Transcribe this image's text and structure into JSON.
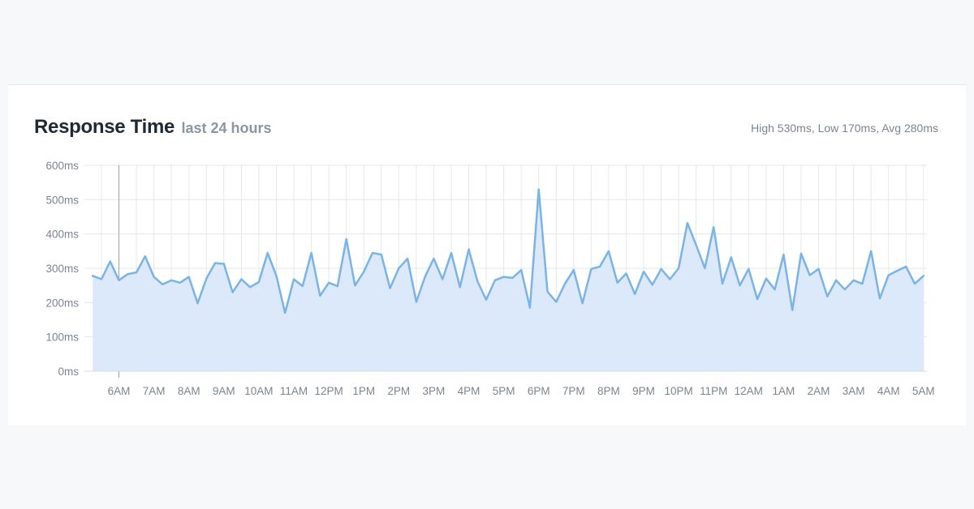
{
  "header": {
    "title": "Response Time",
    "subtitle": "last 24 hours",
    "stats": "High 530ms, Low 170ms, Avg 280ms"
  },
  "colors": {
    "line": "#7ab4e6",
    "fill": "#dce9fa",
    "grid": "#e4e7eb",
    "axis": "#9aa3ab"
  },
  "chart_data": {
    "type": "area",
    "title": "Response Time",
    "subtitle": "last 24 hours",
    "y_unit": "ms",
    "ylim": [
      0,
      600
    ],
    "y_ticks": [
      "0ms",
      "100ms",
      "200ms",
      "300ms",
      "400ms",
      "500ms",
      "600ms"
    ],
    "y_tick_values": [
      0,
      100,
      200,
      300,
      400,
      500,
      600
    ],
    "x_tick_labels": [
      "6AM",
      "7AM",
      "8AM",
      "9AM",
      "10AM",
      "11AM",
      "12PM",
      "1PM",
      "2PM",
      "3PM",
      "4PM",
      "5PM",
      "6PM",
      "7PM",
      "8PM",
      "9PM",
      "10PM",
      "11PM",
      "12AM",
      "1AM",
      "2AM",
      "3AM",
      "4AM",
      "5AM"
    ],
    "x_tick_hours": [
      6,
      7,
      8,
      9,
      10,
      11,
      12,
      13,
      14,
      15,
      16,
      17,
      18,
      19,
      20,
      21,
      22,
      23,
      24,
      25,
      26,
      27,
      28,
      29
    ],
    "xlim_hours": [
      5.25,
      29.0
    ],
    "grid": true,
    "series": [
      {
        "points_per_hour": 4,
        "start_hour": 5.25,
        "values": [
          278,
          268,
          320,
          265,
          283,
          288,
          335,
          275,
          253,
          265,
          258,
          275,
          198,
          270,
          315,
          313,
          230,
          268,
          245,
          260,
          345,
          278,
          170,
          268,
          248,
          345,
          220,
          258,
          248,
          385,
          250,
          290,
          345,
          340,
          242,
          300,
          328,
          202,
          275,
          328,
          268,
          345,
          245,
          355,
          262,
          208,
          265,
          275,
          272,
          295,
          185,
          530,
          232,
          202,
          255,
          295,
          198,
          298,
          305,
          350,
          258,
          285,
          225,
          290,
          252,
          298,
          268,
          300,
          432,
          368,
          300,
          420,
          255,
          332,
          250,
          298,
          210,
          270,
          238,
          340,
          178,
          343,
          280,
          298,
          218,
          265,
          238,
          265,
          255,
          350,
          212,
          280,
          293,
          305,
          255,
          278
        ]
      }
    ]
  }
}
